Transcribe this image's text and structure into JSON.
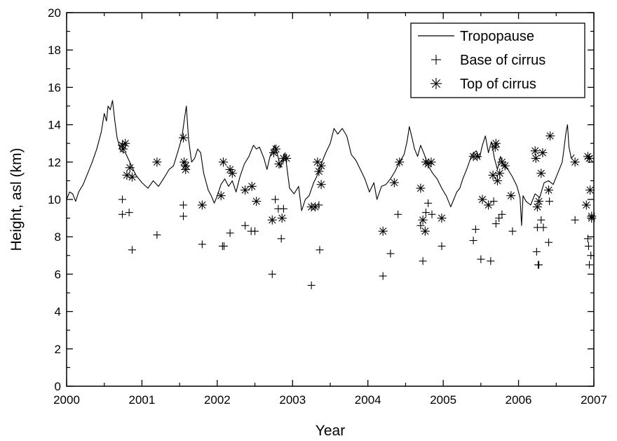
{
  "chart_data": {
    "type": "line",
    "title": "",
    "xlabel": "Year",
    "ylabel": "Height, asl (km)",
    "xlim": [
      2000,
      2007
    ],
    "ylim": [
      0,
      20
    ],
    "x_ticks": [
      "2000",
      "2001",
      "2002",
      "2003",
      "2004",
      "2005",
      "2006",
      "2007"
    ],
    "y_ticks": [
      "0",
      "2",
      "4",
      "6",
      "8",
      "10",
      "12",
      "14",
      "16",
      "18",
      "20"
    ],
    "grid": false,
    "legend_position": "top-right",
    "series": [
      {
        "name": "Tropopause",
        "style": "line",
        "color": "#000000",
        "points": [
          [
            2000.0,
            10.0
          ],
          [
            2000.04,
            10.4
          ],
          [
            2000.08,
            10.3
          ],
          [
            2000.12,
            9.9
          ],
          [
            2000.16,
            10.4
          ],
          [
            2000.22,
            10.8
          ],
          [
            2000.28,
            11.4
          ],
          [
            2000.34,
            12.0
          ],
          [
            2000.4,
            12.7
          ],
          [
            2000.46,
            13.6
          ],
          [
            2000.5,
            14.6
          ],
          [
            2000.53,
            14.2
          ],
          [
            2000.55,
            15.0
          ],
          [
            2000.58,
            14.8
          ],
          [
            2000.61,
            15.3
          ],
          [
            2000.64,
            14.2
          ],
          [
            2000.67,
            13.3
          ],
          [
            2000.72,
            12.6
          ],
          [
            2000.78,
            12.5
          ],
          [
            2000.85,
            11.9
          ],
          [
            2000.92,
            11.3
          ],
          [
            2001.0,
            10.9
          ],
          [
            2001.08,
            10.6
          ],
          [
            2001.15,
            11.0
          ],
          [
            2001.22,
            10.7
          ],
          [
            2001.3,
            11.2
          ],
          [
            2001.36,
            11.6
          ],
          [
            2001.42,
            11.8
          ],
          [
            2001.48,
            12.6
          ],
          [
            2001.53,
            13.3
          ],
          [
            2001.56,
            14.2
          ],
          [
            2001.59,
            15.0
          ],
          [
            2001.62,
            13.2
          ],
          [
            2001.66,
            12.0
          ],
          [
            2001.7,
            12.2
          ],
          [
            2001.74,
            12.7
          ],
          [
            2001.78,
            12.5
          ],
          [
            2001.82,
            11.4
          ],
          [
            2001.88,
            10.5
          ],
          [
            2001.92,
            10.2
          ],
          [
            2001.96,
            9.8
          ],
          [
            2002.0,
            10.2
          ],
          [
            2002.05,
            10.8
          ],
          [
            2002.1,
            11.1
          ],
          [
            2002.15,
            10.7
          ],
          [
            2002.2,
            11.0
          ],
          [
            2002.25,
            10.4
          ],
          [
            2002.3,
            11.2
          ],
          [
            2002.36,
            11.9
          ],
          [
            2002.42,
            12.3
          ],
          [
            2002.48,
            12.9
          ],
          [
            2002.52,
            12.7
          ],
          [
            2002.56,
            12.8
          ],
          [
            2002.62,
            12.2
          ],
          [
            2002.66,
            11.6
          ],
          [
            2002.7,
            12.3
          ],
          [
            2002.76,
            12.9
          ],
          [
            2002.8,
            12.4
          ],
          [
            2002.84,
            11.7
          ],
          [
            2002.9,
            12.5
          ],
          [
            2002.96,
            10.6
          ],
          [
            2003.02,
            10.3
          ],
          [
            2003.08,
            10.7
          ],
          [
            2003.12,
            9.4
          ],
          [
            2003.17,
            10.0
          ],
          [
            2003.22,
            10.2
          ],
          [
            2003.28,
            10.9
          ],
          [
            2003.33,
            11.3
          ],
          [
            2003.38,
            11.9
          ],
          [
            2003.44,
            12.5
          ],
          [
            2003.5,
            13.0
          ],
          [
            2003.55,
            13.8
          ],
          [
            2003.6,
            13.5
          ],
          [
            2003.66,
            13.8
          ],
          [
            2003.72,
            13.4
          ],
          [
            2003.78,
            12.4
          ],
          [
            2003.84,
            12.1
          ],
          [
            2003.9,
            11.6
          ],
          [
            2003.96,
            11.1
          ],
          [
            2004.02,
            10.4
          ],
          [
            2004.08,
            10.9
          ],
          [
            2004.12,
            10.0
          ],
          [
            2004.18,
            10.7
          ],
          [
            2004.24,
            10.8
          ],
          [
            2004.3,
            11.1
          ],
          [
            2004.36,
            11.5
          ],
          [
            2004.42,
            12.0
          ],
          [
            2004.48,
            12.4
          ],
          [
            2004.52,
            13.1
          ],
          [
            2004.55,
            13.9
          ],
          [
            2004.58,
            13.4
          ],
          [
            2004.62,
            12.7
          ],
          [
            2004.66,
            12.3
          ],
          [
            2004.7,
            12.9
          ],
          [
            2004.75,
            12.4
          ],
          [
            2004.8,
            11.8
          ],
          [
            2004.86,
            11.4
          ],
          [
            2004.92,
            11.1
          ],
          [
            2004.98,
            10.6
          ],
          [
            2005.04,
            10.2
          ],
          [
            2005.1,
            9.6
          ],
          [
            2005.14,
            10.0
          ],
          [
            2005.18,
            10.4
          ],
          [
            2005.22,
            10.6
          ],
          [
            2005.26,
            11.1
          ],
          [
            2005.32,
            11.7
          ],
          [
            2005.38,
            12.4
          ],
          [
            2005.44,
            12.6
          ],
          [
            2005.48,
            12.2
          ],
          [
            2005.52,
            12.9
          ],
          [
            2005.56,
            13.4
          ],
          [
            2005.6,
            12.5
          ],
          [
            2005.64,
            13.1
          ],
          [
            2005.68,
            12.2
          ],
          [
            2005.72,
            11.6
          ],
          [
            2005.76,
            12.3
          ],
          [
            2005.8,
            11.8
          ],
          [
            2005.86,
            11.6
          ],
          [
            2005.92,
            11.2
          ],
          [
            2005.98,
            10.7
          ],
          [
            2006.02,
            10.1
          ],
          [
            2006.04,
            8.6
          ],
          [
            2006.06,
            10.2
          ],
          [
            2006.1,
            9.9
          ],
          [
            2006.16,
            9.7
          ],
          [
            2006.22,
            10.3
          ],
          [
            2006.28,
            10.1
          ],
          [
            2006.34,
            10.9
          ],
          [
            2006.4,
            11.0
          ],
          [
            2006.46,
            10.8
          ],
          [
            2006.5,
            11.2
          ],
          [
            2006.54,
            11.6
          ],
          [
            2006.58,
            12.0
          ],
          [
            2006.6,
            12.6
          ],
          [
            2006.63,
            13.6
          ],
          [
            2006.65,
            14.0
          ],
          [
            2006.67,
            12.8
          ],
          [
            2006.7,
            12.2
          ],
          [
            2006.74,
            12.4
          ]
        ]
      },
      {
        "name": "Base of cirrus",
        "style": "plus",
        "color": "#000000",
        "points": [
          [
            2000.74,
            10.0
          ],
          [
            2000.74,
            9.2
          ],
          [
            2000.83,
            9.3
          ],
          [
            2000.87,
            7.3
          ],
          [
            2001.2,
            8.1
          ],
          [
            2001.55,
            9.7
          ],
          [
            2001.55,
            9.1
          ],
          [
            2001.8,
            7.6
          ],
          [
            2002.07,
            7.5
          ],
          [
            2002.09,
            7.5
          ],
          [
            2002.17,
            8.2
          ],
          [
            2002.37,
            8.6
          ],
          [
            2002.45,
            8.3
          ],
          [
            2002.5,
            8.3
          ],
          [
            2002.73,
            6.0
          ],
          [
            2002.77,
            10.0
          ],
          [
            2002.81,
            9.5
          ],
          [
            2002.85,
            7.9
          ],
          [
            2002.88,
            9.5
          ],
          [
            2003.25,
            5.4
          ],
          [
            2003.35,
            9.7
          ],
          [
            2003.36,
            7.3
          ],
          [
            2004.2,
            5.9
          ],
          [
            2004.3,
            7.1
          ],
          [
            2004.4,
            9.2
          ],
          [
            2004.7,
            8.6
          ],
          [
            2004.73,
            6.7
          ],
          [
            2004.77,
            9.3
          ],
          [
            2004.8,
            9.8
          ],
          [
            2004.85,
            9.2
          ],
          [
            2004.98,
            7.5
          ],
          [
            2005.4,
            7.8
          ],
          [
            2005.43,
            8.4
          ],
          [
            2005.5,
            6.8
          ],
          [
            2005.63,
            6.7
          ],
          [
            2005.67,
            9.9
          ],
          [
            2005.7,
            8.7
          ],
          [
            2005.74,
            9.0
          ],
          [
            2005.78,
            9.2
          ],
          [
            2005.92,
            8.3
          ],
          [
            2006.24,
            7.2
          ],
          [
            2006.25,
            8.5
          ],
          [
            2006.26,
            6.5
          ],
          [
            2006.27,
            6.5
          ],
          [
            2006.3,
            8.9
          ],
          [
            2006.33,
            8.5
          ],
          [
            2006.4,
            7.7
          ],
          [
            2006.41,
            9.9
          ],
          [
            2006.75,
            8.9
          ],
          [
            2006.92,
            7.9
          ],
          [
            2006.93,
            7.5
          ],
          [
            2006.94,
            6.5
          ],
          [
            2006.96,
            7.0
          ]
        ]
      },
      {
        "name": "Top of cirrus",
        "style": "asterisk",
        "color": "#000000",
        "points": [
          [
            2000.74,
            12.9
          ],
          [
            2000.75,
            12.7
          ],
          [
            2000.78,
            13.0
          ],
          [
            2000.8,
            11.3
          ],
          [
            2000.84,
            11.7
          ],
          [
            2000.87,
            11.2
          ],
          [
            2001.2,
            12.0
          ],
          [
            2001.55,
            13.3
          ],
          [
            2001.56,
            12.0
          ],
          [
            2001.58,
            11.8
          ],
          [
            2001.58,
            11.6
          ],
          [
            2001.8,
            9.7
          ],
          [
            2002.05,
            10.2
          ],
          [
            2002.08,
            12.0
          ],
          [
            2002.17,
            11.6
          ],
          [
            2002.2,
            11.4
          ],
          [
            2002.37,
            10.5
          ],
          [
            2002.46,
            10.7
          ],
          [
            2002.52,
            9.9
          ],
          [
            2002.73,
            8.9
          ],
          [
            2002.75,
            12.5
          ],
          [
            2002.78,
            12.7
          ],
          [
            2002.82,
            11.9
          ],
          [
            2002.86,
            9.0
          ],
          [
            2002.88,
            12.2
          ],
          [
            2002.92,
            12.2
          ],
          [
            2003.25,
            9.6
          ],
          [
            2003.3,
            9.6
          ],
          [
            2003.33,
            12.0
          ],
          [
            2003.35,
            11.5
          ],
          [
            2003.38,
            11.8
          ],
          [
            2003.38,
            10.8
          ],
          [
            2004.2,
            8.3
          ],
          [
            2004.35,
            10.9
          ],
          [
            2004.42,
            12.0
          ],
          [
            2004.7,
            10.6
          ],
          [
            2004.73,
            8.9
          ],
          [
            2004.76,
            8.3
          ],
          [
            2004.77,
            12.0
          ],
          [
            2004.8,
            11.9
          ],
          [
            2004.84,
            12.0
          ],
          [
            2004.98,
            9.0
          ],
          [
            2005.4,
            12.3
          ],
          [
            2005.45,
            12.3
          ],
          [
            2005.52,
            10.0
          ],
          [
            2005.6,
            9.7
          ],
          [
            2005.66,
            11.3
          ],
          [
            2005.69,
            12.8
          ],
          [
            2005.7,
            13.0
          ],
          [
            2005.72,
            11.0
          ],
          [
            2005.75,
            11.4
          ],
          [
            2005.78,
            12.0
          ],
          [
            2005.82,
            11.8
          ],
          [
            2005.9,
            10.2
          ],
          [
            2006.22,
            12.6
          ],
          [
            2006.23,
            12.2
          ],
          [
            2006.25,
            9.6
          ],
          [
            2006.27,
            9.9
          ],
          [
            2006.3,
            11.4
          ],
          [
            2006.32,
            12.5
          ],
          [
            2006.4,
            10.5
          ],
          [
            2006.42,
            13.4
          ],
          [
            2006.75,
            12.0
          ],
          [
            2006.9,
            9.7
          ],
          [
            2006.92,
            12.3
          ],
          [
            2006.94,
            12.2
          ],
          [
            2006.95,
            10.5
          ],
          [
            2006.97,
            9.1
          ],
          [
            2006.97,
            9.0
          ]
        ]
      }
    ]
  }
}
